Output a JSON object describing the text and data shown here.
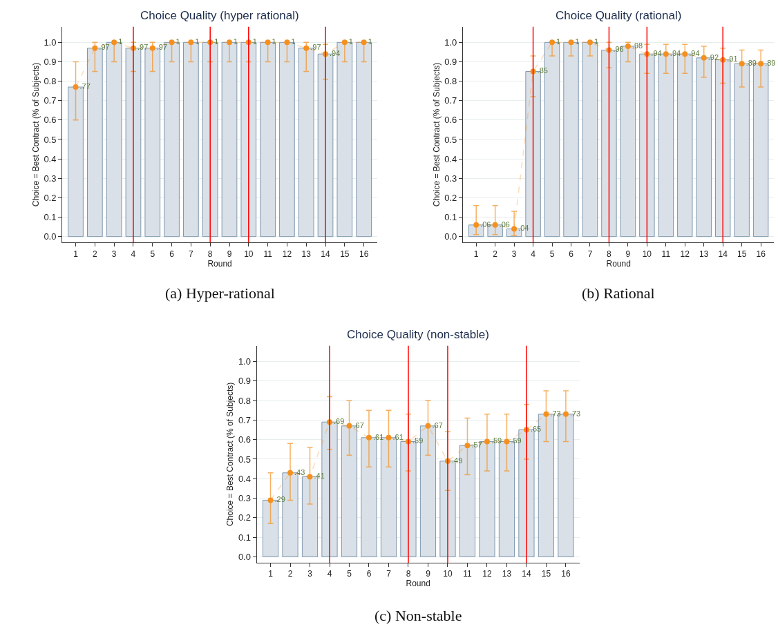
{
  "chart_data": [
    {
      "type": "bar",
      "title": "Choice Quality (hyper rational)",
      "xlabel": "Round",
      "ylabel": "Choice = Best Contract (% of Subjects)",
      "x": [
        1,
        2,
        3,
        4,
        5,
        6,
        7,
        8,
        9,
        10,
        11,
        12,
        13,
        14,
        15,
        16
      ],
      "series": [
        {
          "color": "#d9e0e7",
          "values": [
            0.77,
            0.97,
            1,
            0.97,
            0.97,
            1,
            1,
            1,
            1,
            1,
            1,
            1,
            0.97,
            0.94,
            1,
            1
          ]
        },
        {
          "type": "line",
          "color": "#f5901f",
          "marker": "circle",
          "line_style": "dashed",
          "values": [
            0.77,
            0.97,
            1,
            0.97,
            0.97,
            1,
            1,
            1,
            1,
            1,
            1,
            1,
            0.97,
            0.94,
            1,
            1
          ],
          "value_labels": [
            ".77",
            ".97",
            "1",
            ".97",
            ".97",
            "1",
            "1",
            "1",
            "1",
            "1",
            "1",
            "1",
            ".97",
            ".94",
            "1",
            "1"
          ],
          "errors": [
            [
              0.6,
              0.9
            ],
            [
              0.85,
              1.0
            ],
            [
              0.9,
              1.0
            ],
            [
              0.85,
              1.0
            ],
            [
              0.85,
              1.0
            ],
            [
              0.9,
              1.0
            ],
            [
              0.9,
              1.0
            ],
            [
              0.9,
              1.0
            ],
            [
              0.9,
              1.0
            ],
            [
              0.9,
              1.0
            ],
            [
              0.9,
              1.0
            ],
            [
              0.9,
              1.0
            ],
            [
              0.85,
              1.0
            ],
            [
              0.81,
              0.99
            ],
            [
              0.9,
              1.0
            ],
            [
              0.9,
              1.0
            ]
          ]
        }
      ],
      "xlim": [
        0.3,
        16.7
      ],
      "xticks": [
        1,
        2,
        3,
        4,
        5,
        6,
        7,
        8,
        9,
        10,
        11,
        12,
        13,
        14,
        15,
        16
      ],
      "ylim": [
        -0.03,
        1.08
      ],
      "yticks": [
        {
          "value": 0,
          "label": "0.0"
        },
        {
          "value": 0.1,
          "label": "0.1"
        },
        {
          "value": 0.2,
          "label": "0.2"
        },
        {
          "value": 0.3,
          "label": "0.3"
        },
        {
          "value": 0.4,
          "label": "0.4"
        },
        {
          "value": 0.5,
          "label": "0.5"
        },
        {
          "value": 0.6,
          "label": "0.6"
        },
        {
          "value": 0.7,
          "label": "0.7"
        },
        {
          "value": 0.8,
          "label": "0.8"
        },
        {
          "value": 0.9,
          "label": "0.9"
        },
        {
          "value": 1,
          "label": "1.0"
        }
      ],
      "grid": "y",
      "ref_lines": [
        {
          "axis": "x",
          "value": 4,
          "color": "#ff0000"
        },
        {
          "axis": "x",
          "value": 8,
          "color": "#ff0000"
        },
        {
          "axis": "x",
          "value": 10,
          "color": "#ff0000"
        },
        {
          "axis": "x",
          "value": 14,
          "color": "#ff0000"
        }
      ],
      "annotations": [
        "(a) Hyper-rational"
      ]
    },
    {
      "type": "bar",
      "title": "Choice Quality (rational)",
      "xlabel": "Round",
      "ylabel": "Choice = Best Contract (% of Subjects)",
      "x": [
        1,
        2,
        3,
        4,
        5,
        6,
        7,
        8,
        9,
        10,
        11,
        12,
        13,
        14,
        15,
        16
      ],
      "series": [
        {
          "color": "#d9e0e7",
          "values": [
            0.06,
            0.06,
            0.04,
            0.85,
            1,
            1,
            1,
            0.96,
            0.98,
            0.94,
            0.94,
            0.94,
            0.92,
            0.91,
            0.89,
            0.89
          ]
        },
        {
          "type": "line",
          "color": "#f5901f",
          "marker": "circle",
          "line_style": "dashed",
          "values": [
            0.06,
            0.06,
            0.04,
            0.85,
            1,
            1,
            1,
            0.96,
            0.98,
            0.94,
            0.94,
            0.94,
            0.92,
            0.91,
            0.89,
            0.89
          ],
          "value_labels": [
            ".06",
            ".06",
            ".04",
            ".85",
            "1",
            "1",
            "1",
            ".96",
            ".98",
            ".94",
            ".94",
            ".94",
            ".92",
            ".91",
            ".89",
            ".89"
          ],
          "errors": [
            [
              0.01,
              0.16
            ],
            [
              0.01,
              0.16
            ],
            [
              0.005,
              0.13
            ],
            [
              0.72,
              0.93
            ],
            [
              0.93,
              1.0
            ],
            [
              0.93,
              1.0
            ],
            [
              0.93,
              1.0
            ],
            [
              0.87,
              1.0
            ],
            [
              0.9,
              1.0
            ],
            [
              0.84,
              0.99
            ],
            [
              0.84,
              0.99
            ],
            [
              0.84,
              0.99
            ],
            [
              0.82,
              0.98
            ],
            [
              0.79,
              0.97
            ],
            [
              0.77,
              0.96
            ],
            [
              0.77,
              0.96
            ]
          ]
        }
      ],
      "xlim": [
        0.3,
        16.7
      ],
      "xticks": [
        1,
        2,
        3,
        4,
        5,
        6,
        7,
        8,
        9,
        10,
        11,
        12,
        13,
        14,
        15,
        16
      ],
      "ylim": [
        -0.03,
        1.08
      ],
      "yticks": [
        {
          "value": 0,
          "label": "0.0"
        },
        {
          "value": 0.1,
          "label": "0.1"
        },
        {
          "value": 0.2,
          "label": "0.2"
        },
        {
          "value": 0.3,
          "label": "0.3"
        },
        {
          "value": 0.4,
          "label": "0.4"
        },
        {
          "value": 0.5,
          "label": "0.5"
        },
        {
          "value": 0.6,
          "label": "0.6"
        },
        {
          "value": 0.7,
          "label": "0.7"
        },
        {
          "value": 0.8,
          "label": "0.8"
        },
        {
          "value": 0.9,
          "label": "0.9"
        },
        {
          "value": 1,
          "label": "1.0"
        }
      ],
      "grid": "y",
      "ref_lines": [
        {
          "axis": "x",
          "value": 4,
          "color": "#ff0000"
        },
        {
          "axis": "x",
          "value": 8,
          "color": "#ff0000"
        },
        {
          "axis": "x",
          "value": 10,
          "color": "#ff0000"
        },
        {
          "axis": "x",
          "value": 14,
          "color": "#ff0000"
        }
      ],
      "annotations": [
        "(b) Rational"
      ]
    },
    {
      "type": "bar",
      "title": "Choice Quality (non-stable)",
      "xlabel": "Round",
      "ylabel": "Choice = Best Contract (% of Subjects)",
      "x": [
        1,
        2,
        3,
        4,
        5,
        6,
        7,
        8,
        9,
        10,
        11,
        12,
        13,
        14,
        15,
        16
      ],
      "series": [
        {
          "color": "#d9e0e7",
          "values": [
            0.29,
            0.43,
            0.41,
            0.69,
            0.67,
            0.61,
            0.61,
            0.59,
            0.67,
            0.49,
            0.57,
            0.59,
            0.59,
            0.65,
            0.73,
            0.73
          ]
        },
        {
          "type": "line",
          "color": "#f5901f",
          "marker": "circle",
          "line_style": "dashed",
          "values": [
            0.29,
            0.43,
            0.41,
            0.69,
            0.67,
            0.61,
            0.61,
            0.59,
            0.67,
            0.49,
            0.57,
            0.59,
            0.59,
            0.65,
            0.73,
            0.73
          ],
          "value_labels": [
            ".29",
            ".43",
            ".41",
            ".69",
            ".67",
            ".61",
            ".61",
            ".59",
            ".67",
            ".49",
            ".57",
            ".59",
            ".59",
            ".65",
            ".73",
            ".73"
          ],
          "errors": [
            [
              0.17,
              0.43
            ],
            [
              0.29,
              0.58
            ],
            [
              0.27,
              0.56
            ],
            [
              0.55,
              0.82
            ],
            [
              0.52,
              0.8
            ],
            [
              0.46,
              0.75
            ],
            [
              0.46,
              0.75
            ],
            [
              0.44,
              0.73
            ],
            [
              0.52,
              0.8
            ],
            [
              0.34,
              0.64
            ],
            [
              0.42,
              0.71
            ],
            [
              0.44,
              0.73
            ],
            [
              0.44,
              0.73
            ],
            [
              0.5,
              0.78
            ],
            [
              0.59,
              0.85
            ],
            [
              0.59,
              0.85
            ]
          ]
        }
      ],
      "xlim": [
        0.3,
        16.7
      ],
      "xticks": [
        1,
        2,
        3,
        4,
        5,
        6,
        7,
        8,
        9,
        10,
        11,
        12,
        13,
        14,
        15,
        16
      ],
      "ylim": [
        -0.03,
        1.08
      ],
      "yticks": [
        {
          "value": 0,
          "label": "0.0"
        },
        {
          "value": 0.1,
          "label": "0.1"
        },
        {
          "value": 0.2,
          "label": "0.2"
        },
        {
          "value": 0.3,
          "label": "0.3"
        },
        {
          "value": 0.4,
          "label": "0.4"
        },
        {
          "value": 0.5,
          "label": "0.5"
        },
        {
          "value": 0.6,
          "label": "0.6"
        },
        {
          "value": 0.7,
          "label": "0.7"
        },
        {
          "value": 0.8,
          "label": "0.8"
        },
        {
          "value": 0.9,
          "label": "0.9"
        },
        {
          "value": 1,
          "label": "1.0"
        }
      ],
      "grid": "y",
      "ref_lines": [
        {
          "axis": "x",
          "value": 4,
          "color": "#ff0000"
        },
        {
          "axis": "x",
          "value": 8,
          "color": "#ff0000"
        },
        {
          "axis": "x",
          "value": 10,
          "color": "#ff0000"
        },
        {
          "axis": "x",
          "value": 14,
          "color": "#ff0000"
        }
      ],
      "annotations": [
        "(c) Non-stable"
      ]
    }
  ]
}
